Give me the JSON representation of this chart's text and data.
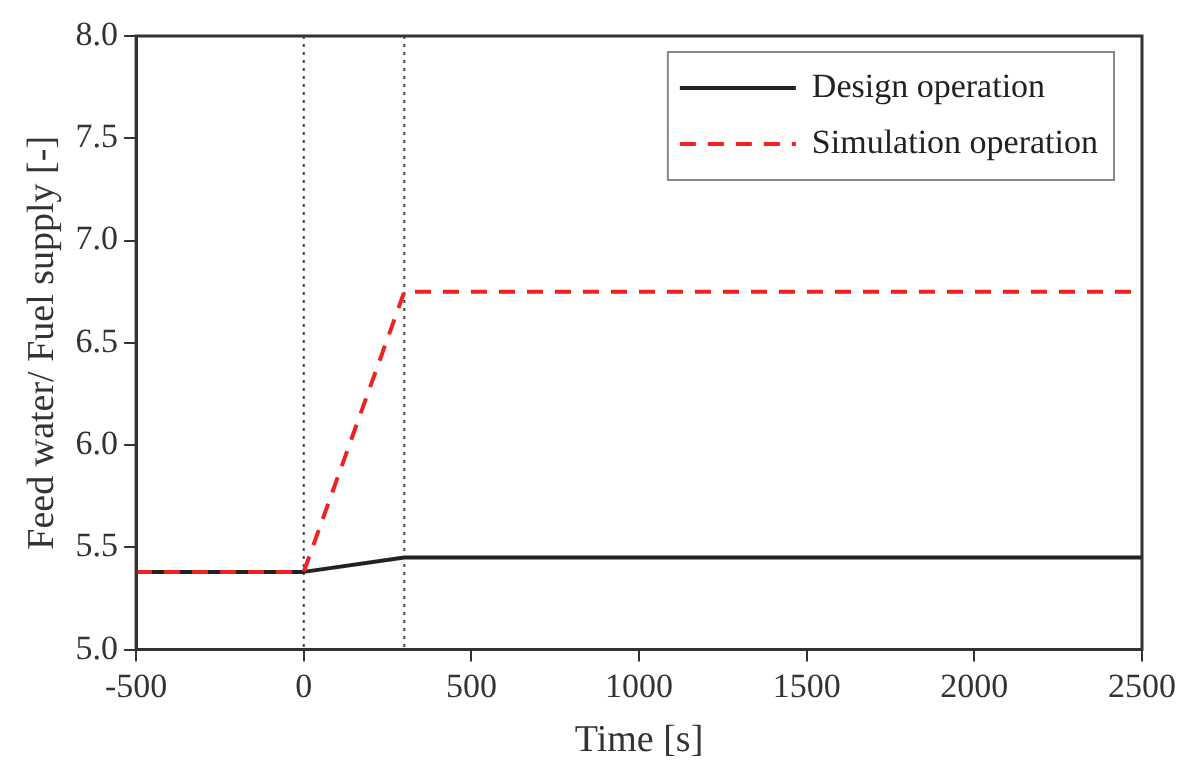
{
  "chart_data": {
    "type": "line",
    "xlabel": "Time [s]",
    "ylabel": "Feed water/ Fuel supply [-]",
    "series": [
      {
        "name": "Design operation",
        "color": "#222222",
        "line_style": "solid",
        "x": [
          -500,
          0,
          300,
          2500
        ],
        "values": [
          5.38,
          5.38,
          5.45,
          5.45
        ]
      },
      {
        "name": "Simulation operation",
        "color": "#ee2222",
        "line_style": "dashed",
        "x": [
          -500,
          0,
          300,
          2500
        ],
        "values": [
          5.38,
          5.38,
          6.75,
          6.75
        ]
      }
    ],
    "xlim": [
      -500,
      2500
    ],
    "xticks": [
      -500,
      0,
      500,
      1000,
      1500,
      2000,
      2500
    ],
    "ylim": [
      5.0,
      8.0
    ],
    "yticks": [
      {
        "value": 5.0,
        "label": "5.0"
      },
      {
        "value": 5.5,
        "label": "5.5"
      },
      {
        "value": 6.0,
        "label": "6.0"
      },
      {
        "value": 6.5,
        "label": "6.5"
      },
      {
        "value": 7.0,
        "label": "7.0"
      },
      {
        "value": 7.5,
        "label": "7.5"
      },
      {
        "value": 8.0,
        "label": "8.0"
      }
    ],
    "ref_lines": [
      {
        "axis": "x",
        "value": 0,
        "color": "#444444",
        "line_style": "dotted"
      },
      {
        "axis": "x",
        "value": 300,
        "color": "#444444",
        "line_style": "dotted"
      }
    ],
    "grid": false,
    "legend": "top right",
    "marker": "none"
  }
}
